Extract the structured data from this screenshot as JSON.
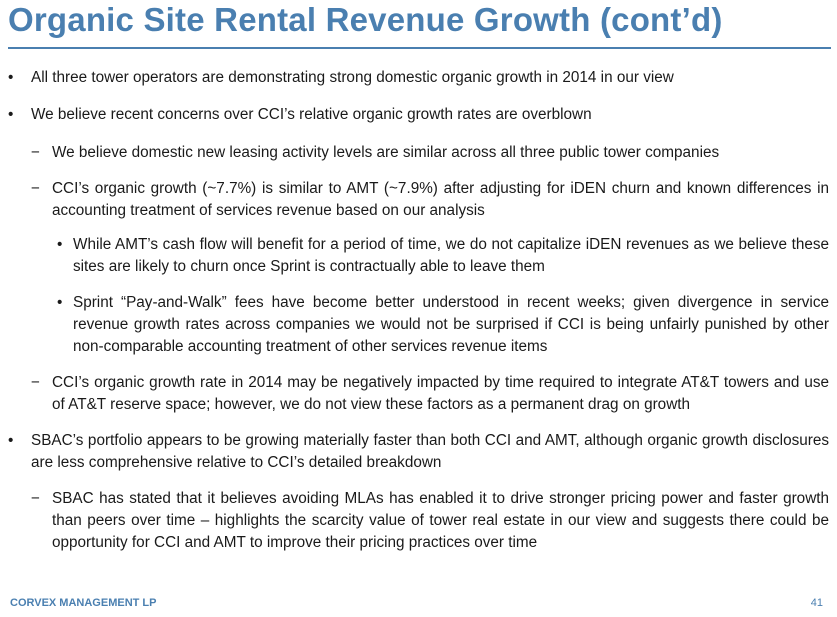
{
  "slide": {
    "title": "Organic Site Rental Revenue Growth (cont’d)",
    "footer_company": "CORVEX MANAGEMENT LP",
    "page_number": "41"
  },
  "bullets": [
    {
      "marker": "•",
      "text": "All three tower operators are demonstrating strong domestic organic growth in 2014 in our view"
    },
    {
      "marker": "•",
      "text": "We believe recent concerns over CCI’s relative organic growth rates are overblown"
    },
    {
      "marker": "−",
      "text": "We believe domestic new leasing activity levels are similar across all three public tower companies"
    },
    {
      "marker": "−",
      "text": "CCI’s organic growth (~7.7%) is similar to AMT (~7.9%) after adjusting for iDEN churn and known differences in accounting treatment of services revenue based on our analysis"
    },
    {
      "marker": "•",
      "text": "While AMT’s cash flow will benefit for a period of time, we do not capitalize iDEN revenues as we believe these sites are likely to churn once Sprint is contractually able to leave them"
    },
    {
      "marker": "•",
      "text": "Sprint “Pay-and-Walk” fees have become better understood in recent weeks; given divergence in service revenue growth rates across companies we would not be surprised if CCI is being unfairly punished by other non-comparable accounting treatment of other services revenue items"
    },
    {
      "marker": "−",
      "text": "CCI’s organic growth rate in 2014 may be negatively impacted by time required to integrate AT&T towers and use of AT&T reserve space; however, we do not view these factors as a permanent drag on growth"
    },
    {
      "marker": "•",
      "text": "SBAC’s portfolio appears to be growing materially faster than both CCI and AMT, although organic growth disclosures are less comprehensive relative to CCI’s detailed breakdown"
    },
    {
      "marker": "−",
      "text": "SBAC has stated that it believes avoiding MLAs has enabled it to drive stronger pricing power and faster growth than peers over time – highlights the scarcity value of tower real estate in our view and suggests there could be opportunity for CCI and AMT to improve their pricing practices over time"
    }
  ]
}
